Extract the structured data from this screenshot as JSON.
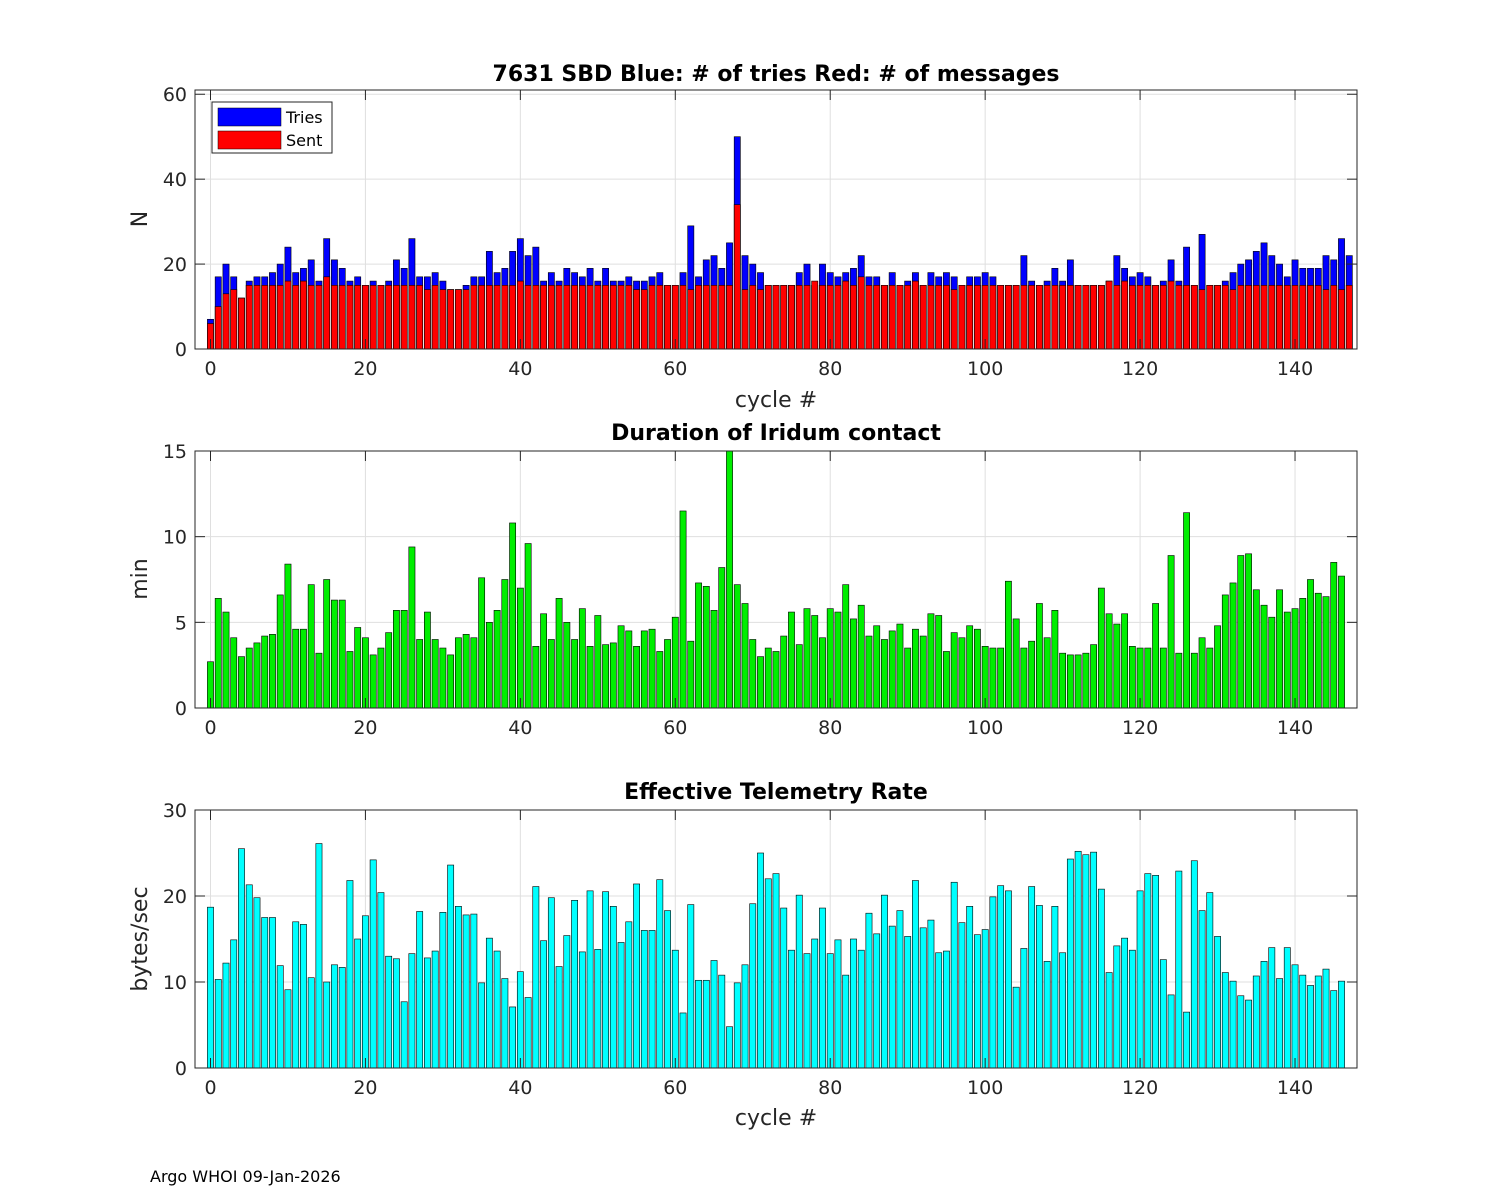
{
  "footer": "Argo WHOI 09-Jan-2026",
  "chart_data": [
    {
      "type": "bar",
      "stacked_overlay": true,
      "title": "7631 SBD  Blue: # of tries   Red: # of messages",
      "xlabel": "cycle #",
      "ylabel": "N",
      "xlim": [
        -2,
        148
      ],
      "ylim": [
        0,
        61
      ],
      "xticks": [
        0,
        20,
        40,
        60,
        80,
        100,
        120,
        140
      ],
      "yticks": [
        0,
        20,
        40,
        60
      ],
      "grid": true,
      "legend": {
        "placement": "top-left",
        "entries": [
          "Tries",
          "Sent"
        ]
      },
      "x_start": 0,
      "series": [
        {
          "name": "Tries",
          "color": "#0000ff",
          "values": [
            7,
            17,
            20,
            17,
            12,
            16,
            17,
            17,
            18,
            20,
            24,
            18,
            19,
            21,
            16,
            26,
            21,
            19,
            16,
            17,
            15,
            16,
            15,
            16,
            21,
            19,
            26,
            17,
            17,
            18,
            16,
            14,
            14,
            15,
            17,
            17,
            23,
            18,
            19,
            23,
            26,
            22,
            24,
            16,
            18,
            16,
            19,
            18,
            17,
            19,
            16,
            19,
            16,
            16,
            17,
            16,
            16,
            17,
            18,
            15,
            15,
            18,
            29,
            17,
            21,
            22,
            19,
            25,
            50,
            22,
            20,
            18,
            15,
            15,
            15,
            15,
            18,
            20,
            15,
            20,
            18,
            17,
            18,
            19,
            22,
            17,
            17,
            15,
            18,
            15,
            16,
            18,
            15,
            18,
            17,
            18,
            17,
            15,
            17,
            17,
            18,
            17,
            15,
            15,
            15,
            22,
            16,
            15,
            16,
            19,
            16,
            21,
            15,
            15,
            15,
            15,
            16,
            22,
            19,
            17,
            18,
            17,
            15,
            16,
            21,
            16,
            24,
            15,
            27,
            15,
            15,
            16,
            18,
            20,
            21,
            23,
            25,
            22,
            20,
            17,
            21,
            19,
            19,
            19,
            22,
            21,
            26,
            22
          ]
        },
        {
          "name": "Sent",
          "color": "#ff0000",
          "values": [
            6,
            10,
            13,
            14,
            12,
            15,
            15,
            15,
            15,
            15,
            16,
            15,
            16,
            15,
            15,
            17,
            15,
            15,
            15,
            15,
            15,
            15,
            15,
            15,
            15,
            15,
            15,
            15,
            14,
            15,
            14,
            14,
            14,
            14,
            15,
            15,
            15,
            15,
            15,
            15,
            16,
            15,
            15,
            15,
            15,
            15,
            15,
            15,
            15,
            15,
            15,
            15,
            15,
            15,
            15,
            14,
            14,
            15,
            15,
            15,
            15,
            15,
            14,
            15,
            15,
            15,
            15,
            15,
            34,
            14,
            15,
            14,
            15,
            15,
            15,
            15,
            15,
            15,
            16,
            15,
            15,
            15,
            16,
            15,
            17,
            15,
            15,
            15,
            15,
            15,
            15,
            16,
            15,
            15,
            15,
            15,
            14,
            15,
            15,
            15,
            15,
            15,
            15,
            15,
            15,
            15,
            15,
            15,
            15,
            15,
            15,
            15,
            15,
            15,
            15,
            15,
            16,
            15,
            16,
            15,
            15,
            15,
            15,
            15,
            16,
            15,
            15,
            15,
            14,
            15,
            15,
            15,
            14,
            15,
            15,
            15,
            15,
            15,
            15,
            15,
            15,
            15,
            15,
            15,
            14,
            15,
            14,
            15
          ]
        }
      ]
    },
    {
      "type": "bar",
      "title": "Duration of Iridum contact",
      "xlabel": "",
      "ylabel": "min",
      "xlim": [
        -2,
        148
      ],
      "ylim": [
        0,
        15
      ],
      "xticks": [
        0,
        20,
        40,
        60,
        80,
        100,
        120,
        140
      ],
      "yticks": [
        0,
        5,
        10,
        15
      ],
      "grid": true,
      "x_start": 0,
      "series": [
        {
          "name": "Duration",
          "color": "#00ee00",
          "values": [
            2.7,
            6.4,
            5.6,
            4.1,
            3.0,
            3.5,
            3.8,
            4.2,
            4.3,
            6.6,
            8.4,
            4.6,
            4.6,
            7.2,
            3.2,
            7.5,
            6.3,
            6.3,
            3.3,
            4.7,
            4.1,
            3.1,
            3.5,
            4.4,
            5.7,
            5.7,
            9.4,
            4.0,
            5.6,
            4.0,
            3.5,
            3.1,
            4.1,
            4.3,
            4.1,
            7.6,
            5.0,
            5.7,
            7.5,
            10.8,
            7.0,
            9.6,
            3.6,
            5.5,
            4.0,
            6.4,
            5.0,
            4.0,
            5.8,
            3.6,
            5.4,
            3.7,
            3.8,
            4.8,
            4.5,
            3.6,
            4.5,
            4.6,
            3.3,
            4.0,
            5.3,
            11.5,
            3.9,
            7.3,
            7.1,
            5.7,
            8.2,
            15.0,
            7.2,
            6.1,
            4.0,
            3.0,
            3.5,
            3.3,
            4.2,
            5.6,
            3.7,
            5.8,
            5.4,
            4.1,
            5.8,
            5.6,
            7.2,
            5.2,
            6.0,
            4.2,
            4.8,
            4.0,
            4.5,
            4.9,
            3.5,
            4.6,
            4.2,
            5.5,
            5.4,
            3.3,
            4.4,
            4.1,
            4.8,
            4.6,
            3.6,
            3.5,
            3.5,
            7.4,
            5.2,
            3.5,
            3.9,
            6.1,
            4.1,
            5.7,
            3.2,
            3.1,
            3.1,
            3.2,
            3.7,
            7.0,
            5.5,
            4.9,
            5.5,
            3.6,
            3.5,
            3.5,
            6.1,
            3.5,
            8.9,
            3.2,
            11.4,
            3.2,
            4.1,
            3.5,
            4.8,
            6.6,
            7.3,
            8.9,
            9.0,
            6.9,
            6.0,
            5.3,
            6.9,
            5.6,
            5.8,
            6.4,
            7.5,
            6.7,
            6.5,
            8.5,
            7.7
          ]
        }
      ]
    },
    {
      "type": "bar",
      "title": "Effective Telemetry Rate",
      "xlabel": "cycle #",
      "ylabel": "bytes/sec",
      "xlim": [
        -2,
        148
      ],
      "ylim": [
        0,
        30
      ],
      "xticks": [
        0,
        20,
        40,
        60,
        80,
        100,
        120,
        140
      ],
      "yticks": [
        0,
        10,
        20,
        30
      ],
      "grid": true,
      "x_start": 0,
      "series": [
        {
          "name": "Rate",
          "color": "#00ffff",
          "values": [
            18.7,
            10.3,
            12.2,
            14.9,
            25.5,
            21.3,
            19.8,
            17.5,
            17.5,
            11.9,
            9.1,
            17.0,
            16.7,
            10.5,
            26.1,
            10.0,
            12.0,
            11.7,
            21.8,
            15.0,
            17.7,
            24.2,
            20.4,
            13.0,
            12.7,
            7.7,
            13.3,
            18.2,
            12.8,
            13.6,
            18.1,
            23.6,
            18.8,
            17.8,
            17.9,
            9.9,
            15.1,
            13.6,
            10.4,
            7.1,
            11.2,
            8.2,
            21.1,
            14.8,
            19.8,
            11.8,
            15.4,
            19.5,
            13.5,
            20.6,
            13.8,
            20.5,
            18.8,
            14.6,
            17.0,
            21.4,
            16.0,
            16.0,
            21.9,
            18.3,
            13.7,
            6.4,
            19.0,
            10.2,
            10.2,
            12.5,
            10.8,
            4.8,
            9.9,
            12.0,
            19.1,
            25.0,
            22.0,
            22.6,
            18.6,
            13.7,
            20.1,
            13.3,
            15.0,
            18.6,
            13.3,
            14.9,
            10.8,
            15.0,
            13.7,
            18.0,
            15.6,
            20.1,
            16.5,
            18.3,
            15.3,
            21.8,
            16.3,
            17.2,
            13.4,
            13.6,
            21.6,
            16.9,
            18.8,
            15.5,
            16.1,
            19.9,
            21.2,
            20.6,
            9.4,
            13.9,
            21.1,
            18.9,
            12.4,
            18.8,
            13.4,
            24.3,
            25.2,
            24.8,
            25.1,
            20.8,
            11.1,
            14.2,
            15.1,
            13.7,
            20.6,
            22.6,
            22.4,
            12.6,
            8.5,
            22.9,
            6.5,
            24.1,
            18.3,
            20.4,
            15.3,
            11.1,
            10.1,
            8.4,
            7.9,
            10.7,
            12.4,
            14.0,
            10.4,
            14.0,
            12.0,
            10.8,
            9.6,
            10.7,
            11.5,
            9.0,
            10.1
          ]
        }
      ]
    }
  ]
}
